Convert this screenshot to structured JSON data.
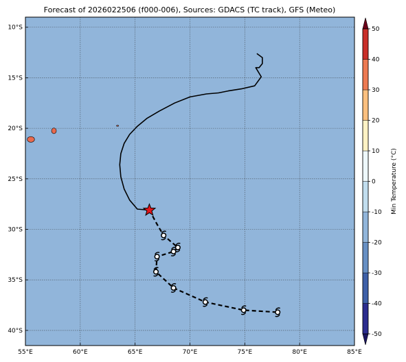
{
  "title": "Forecast of 2026022506 (f000-006), Sources: GDACS (TC track), GFS (Meteo)",
  "map": {
    "lon_range": [
      55,
      85
    ],
    "lat_range": [
      -41.5,
      -9
    ],
    "lon_ticks": [
      {
        "value": 55,
        "label": "55°E"
      },
      {
        "value": 60,
        "label": "60°E"
      },
      {
        "value": 65,
        "label": "65°E"
      },
      {
        "value": 70,
        "label": "70°E"
      },
      {
        "value": 75,
        "label": "75°E"
      },
      {
        "value": 80,
        "label": "80°E"
      },
      {
        "value": 85,
        "label": "85°E"
      }
    ],
    "lat_ticks": [
      {
        "value": -10,
        "label": "10°S"
      },
      {
        "value": -15,
        "label": "15°S"
      },
      {
        "value": -20,
        "label": "20°S"
      },
      {
        "value": -25,
        "label": "25°S"
      },
      {
        "value": -30,
        "label": "30°S"
      },
      {
        "value": -35,
        "label": "35°S"
      },
      {
        "value": -40,
        "label": "40°S"
      }
    ],
    "ocean_color": "#91b5da",
    "land_color": "#e8694d",
    "islands": [
      {
        "name": "reunion",
        "lon": 55.5,
        "lat": -21.1,
        "rx": 0.33,
        "ry": 0.28
      },
      {
        "name": "mauritius",
        "lon": 57.6,
        "lat": -20.25,
        "rx": 0.22,
        "ry": 0.28
      },
      {
        "name": "rodrigues",
        "lon": 63.4,
        "lat": -19.75,
        "rx": 0.1,
        "ry": 0.05
      }
    ],
    "past_track": [
      [
        76.1,
        -12.6
      ],
      [
        76.6,
        -13.0
      ],
      [
        76.6,
        -13.6
      ],
      [
        76.3,
        -14.0
      ],
      [
        76.0,
        -14.0
      ],
      [
        76.5,
        -14.9
      ],
      [
        75.9,
        -15.8
      ],
      [
        74.7,
        -16.1
      ],
      [
        73.5,
        -16.3
      ],
      [
        72.6,
        -16.5
      ],
      [
        71.5,
        -16.6
      ],
      [
        70.0,
        -16.9
      ],
      [
        68.6,
        -17.5
      ],
      [
        67.2,
        -18.3
      ],
      [
        66.1,
        -19.0
      ],
      [
        65.2,
        -19.8
      ],
      [
        64.5,
        -20.6
      ],
      [
        64.0,
        -21.5
      ],
      [
        63.7,
        -22.5
      ],
      [
        63.6,
        -23.6
      ],
      [
        63.7,
        -24.8
      ],
      [
        64.0,
        -26.0
      ],
      [
        64.5,
        -27.1
      ],
      [
        65.2,
        -28.0
      ],
      [
        66.3,
        -28.1
      ]
    ],
    "current_position": {
      "lon": 66.3,
      "lat": -28.1
    },
    "forecast_track": [
      [
        66.3,
        -28.1
      ],
      [
        67.0,
        -29.5
      ],
      [
        67.6,
        -30.6
      ],
      [
        68.9,
        -31.8
      ],
      [
        68.5,
        -32.2
      ],
      [
        67.0,
        -32.7
      ],
      [
        66.9,
        -34.2
      ],
      [
        68.5,
        -35.8
      ],
      [
        71.4,
        -37.2
      ],
      [
        74.9,
        -38.0
      ],
      [
        78.0,
        -38.2
      ]
    ],
    "forecast_symbols": [
      [
        67.6,
        -30.6
      ],
      [
        68.9,
        -31.8
      ],
      [
        68.5,
        -32.2
      ],
      [
        67.0,
        -32.7
      ],
      [
        66.9,
        -34.2
      ],
      [
        68.5,
        -35.8
      ],
      [
        71.4,
        -37.2
      ],
      [
        74.9,
        -38.0
      ],
      [
        78.0,
        -38.2
      ]
    ]
  },
  "colorbar": {
    "label": "Min Temperature (°C)",
    "levels": [
      -50,
      -40,
      -30,
      -20,
      -10,
      0,
      10,
      20,
      30,
      40,
      50
    ],
    "tick_labels": [
      "-50",
      "-40",
      "-30",
      "-20",
      "-10",
      "0",
      "10",
      "20",
      "30",
      "40",
      "50"
    ],
    "colors": [
      "#2b2c8f",
      "#3e60a8",
      "#6790c4",
      "#91b5da",
      "#c1ddee",
      "#eef8fb",
      "#fff2c4",
      "#fbc07f",
      "#ed7a52",
      "#c9302a",
      "#8c0f28"
    ],
    "under_color": "#1b1560",
    "over_color": "#6b0019"
  }
}
